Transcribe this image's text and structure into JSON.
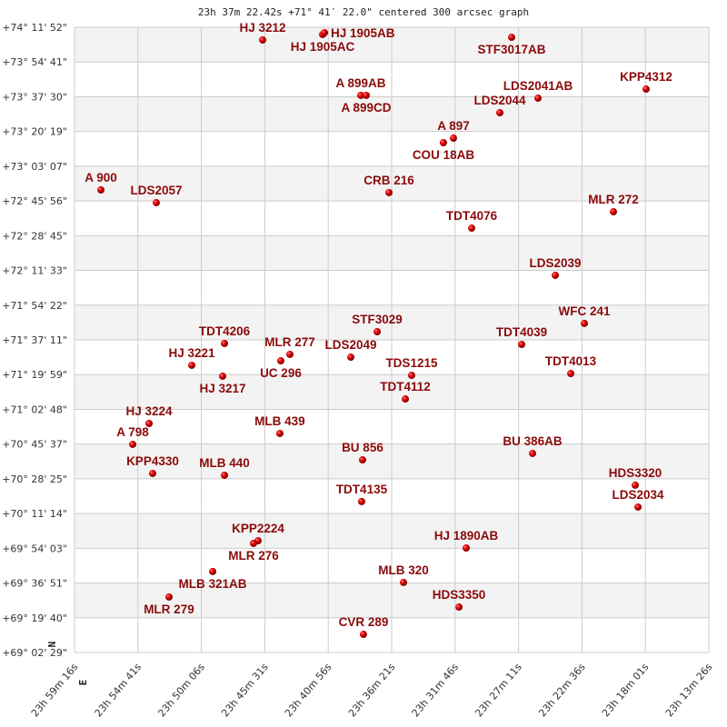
{
  "chart_data": {
    "type": "scatter",
    "title": "23h 37m 22.42s +71° 41′ 22.0\" centered 300 arcsec graph",
    "xlabel": "",
    "ylabel": "",
    "x_unit": "right ascension (hours)",
    "y_unit": "declination (degrees)",
    "xlim": [
      23.98778,
      23.22389
    ],
    "ylim": [
      69.04139,
      74.19778
    ],
    "x_direction": "decreasing-to-right",
    "grid": true,
    "alternating_row_shading": true,
    "compass": {
      "north": "N",
      "east": "E"
    },
    "x_ticks": [
      "23h 59m 16s",
      "23h 54m 41s",
      "23h 50m 06s",
      "23h 45m 31s",
      "23h 40m 56s",
      "23h 36m 21s",
      "23h 31m 46s",
      "23h 27m 11s",
      "23h 22m 36s",
      "23h 18m 01s",
      "23h 13m 26s"
    ],
    "y_ticks": [
      "+74° 11' 52\"",
      "+73° 54' 41\"",
      "+73° 37' 30\"",
      "+73° 20' 19\"",
      "+73° 03' 07\"",
      "+72° 45' 56\"",
      "+72° 28' 45\"",
      "+72° 11' 33\"",
      "+71° 54' 22\"",
      "+71° 37' 11\"",
      "+71° 19' 59\"",
      "+71° 02' 48\"",
      "+70° 45' 37\"",
      "+70° 28' 25\"",
      "+70° 11' 14\"",
      "+69° 54' 03\"",
      "+69° 36' 51\"",
      "+69° 19' 40\"",
      "+69° 02' 29\""
    ],
    "colors": {
      "marker": "#d40000",
      "label": "#8b0a0a",
      "grid": "#cccccc",
      "band": "#f3f3f3"
    },
    "points": [
      {
        "label": "HJ 3212",
        "ra": 23.7612,
        "dec": 74.093
      },
      {
        "label": "HJ 1905AC",
        "ra": 23.689,
        "dec": 74.138
      },
      {
        "label": "HJ 1905AB",
        "ra": 23.6868,
        "dec": 74.153
      },
      {
        "label": "STF3017AB",
        "ra": 23.4614,
        "dec": 74.115
      },
      {
        "label": "A 899AB",
        "ra": 23.643,
        "dec": 73.636
      },
      {
        "label": "A 899CD",
        "ra": 23.6365,
        "dec": 73.636
      },
      {
        "label": "LDS2041AB",
        "ra": 23.4296,
        "dec": 73.613
      },
      {
        "label": "KPP4312",
        "ra": 23.2994,
        "dec": 73.688
      },
      {
        "label": "LDS2044",
        "ra": 23.4756,
        "dec": 73.493
      },
      {
        "label": "A 897",
        "ra": 23.5314,
        "dec": 73.283
      },
      {
        "label": "COU 18AB",
        "ra": 23.5435,
        "dec": 73.246
      },
      {
        "label": "A 900",
        "ra": 23.956,
        "dec": 72.856
      },
      {
        "label": "LDS2057",
        "ra": 23.8893,
        "dec": 72.751
      },
      {
        "label": "CRB 216",
        "ra": 23.6091,
        "dec": 72.834
      },
      {
        "label": "MLR 272",
        "ra": 23.3388,
        "dec": 72.676
      },
      {
        "label": "TDT4076",
        "ra": 23.5095,
        "dec": 72.541
      },
      {
        "label": "LDS2039",
        "ra": 23.4088,
        "dec": 72.152
      },
      {
        "label": "WFC 241",
        "ra": 23.3738,
        "dec": 71.755
      },
      {
        "label": "STF3029",
        "ra": 23.6233,
        "dec": 71.687
      },
      {
        "label": "TDT4206",
        "ra": 23.8072,
        "dec": 71.59
      },
      {
        "label": "MLR 277",
        "ra": 23.7284,
        "dec": 71.5
      },
      {
        "label": "UC 296",
        "ra": 23.7394,
        "dec": 71.447
      },
      {
        "label": "TDT4039",
        "ra": 23.4493,
        "dec": 71.582
      },
      {
        "label": "LDS2049",
        "ra": 23.6551,
        "dec": 71.477
      },
      {
        "label": "HJ 3221",
        "ra": 23.8466,
        "dec": 71.41
      },
      {
        "label": "HJ 3217",
        "ra": 23.8094,
        "dec": 71.32
      },
      {
        "label": "TDS1215",
        "ra": 23.5818,
        "dec": 71.327
      },
      {
        "label": "TDT4013",
        "ra": 23.3902,
        "dec": 71.342
      },
      {
        "label": "TDT4112",
        "ra": 23.5894,
        "dec": 71.132
      },
      {
        "label": "HJ 3224",
        "ra": 23.898,
        "dec": 70.93
      },
      {
        "label": "A 798",
        "ra": 23.9177,
        "dec": 70.758
      },
      {
        "label": "MLB 439",
        "ra": 23.7405,
        "dec": 70.848
      },
      {
        "label": "BU 856",
        "ra": 23.6409,
        "dec": 70.63
      },
      {
        "label": "BU 386AB",
        "ra": 23.4362,
        "dec": 70.683
      },
      {
        "label": "KPP4330",
        "ra": 23.8937,
        "dec": 70.518
      },
      {
        "label": "MLB 440",
        "ra": 23.8072,
        "dec": 70.503
      },
      {
        "label": "HDS3320",
        "ra": 23.3125,
        "dec": 70.421
      },
      {
        "label": "LDS2034",
        "ra": 23.3092,
        "dec": 70.241
      },
      {
        "label": "TDT4135",
        "ra": 23.642,
        "dec": 70.286
      },
      {
        "label": "KPP2224",
        "ra": 23.7667,
        "dec": 69.963
      },
      {
        "label": "MLR 276",
        "ra": 23.7722,
        "dec": 69.941
      },
      {
        "label": "HJ 1890AB",
        "ra": 23.5161,
        "dec": 69.903
      },
      {
        "label": "MLB 321AB",
        "ra": 23.8214,
        "dec": 69.709
      },
      {
        "label": "MLB 320",
        "ra": 23.5916,
        "dec": 69.619
      },
      {
        "label": "MLR 279",
        "ra": 23.874,
        "dec": 69.499
      },
      {
        "label": "HDS3350",
        "ra": 23.5248,
        "dec": 69.416
      },
      {
        "label": "CVR 289",
        "ra": 23.6398,
        "dec": 69.191
      }
    ]
  }
}
